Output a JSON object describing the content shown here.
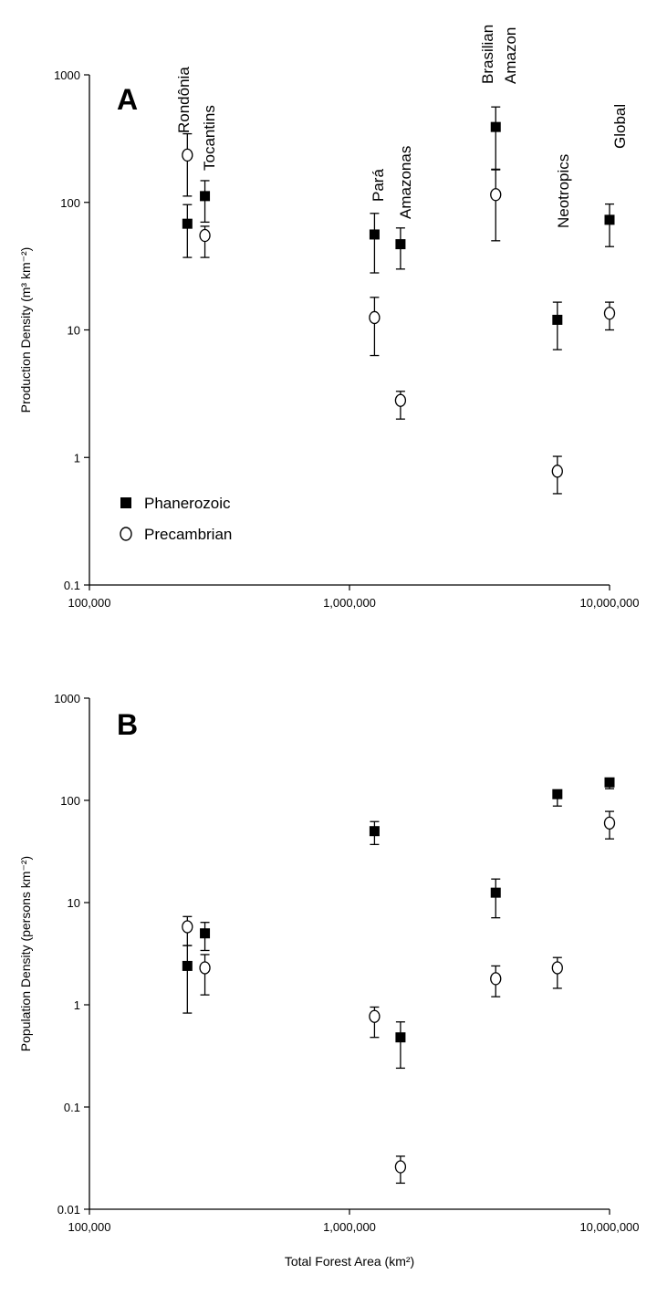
{
  "chart_data": [
    {
      "type": "scatter",
      "panel_label": "A",
      "ylabel": "Production Density (m³ km⁻²)",
      "xscale": "log",
      "yscale": "log",
      "xlim": [
        100000,
        10000000
      ],
      "ylim": [
        0.1,
        1000
      ],
      "xticks": [
        "100,000",
        "1,000,000",
        "10,000,000"
      ],
      "yticks": [
        "0.1",
        "1",
        "10",
        "100",
        "1000"
      ],
      "legend": {
        "placement": "lower-left",
        "items": [
          "Phanerozoic",
          "Precambrian"
        ]
      },
      "series": [
        {
          "name": "Phanerozoic",
          "marker": "filled-square",
          "points": [
            {
              "x": 238000,
              "y": 68,
              "lo": 37,
              "hi": 96
            },
            {
              "x": 278000,
              "y": 112,
              "lo": 70,
              "hi": 148
            },
            {
              "x": 1248000,
              "y": 56,
              "lo": 28,
              "hi": 82
            },
            {
              "x": 1571000,
              "y": 47,
              "lo": 30,
              "hi": 63
            },
            {
              "x": 3650000,
              "y": 390,
              "lo": 182,
              "hi": 560
            },
            {
              "x": 6300000,
              "y": 12,
              "lo": 7,
              "hi": 16.5
            },
            {
              "x": 10000000,
              "y": 73,
              "lo": 45,
              "hi": 97
            }
          ]
        },
        {
          "name": "Precambrian",
          "marker": "open-circle",
          "points": [
            {
              "x": 238000,
              "y": 235,
              "lo": 112,
              "hi": 345
            },
            {
              "x": 278000,
              "y": 55,
              "lo": 37,
              "hi": 65
            },
            {
              "x": 1248000,
              "y": 12.5,
              "lo": 6.3,
              "hi": 18
            },
            {
              "x": 1571000,
              "y": 2.8,
              "lo": 2,
              "hi": 3.3
            },
            {
              "x": 3650000,
              "y": 115,
              "lo": 50,
              "hi": 180
            },
            {
              "x": 6300000,
              "y": 0.78,
              "lo": 0.52,
              "hi": 1.02
            },
            {
              "x": 10000000,
              "y": 13.5,
              "lo": 10,
              "hi": 16.5
            }
          ]
        }
      ],
      "annotations": [
        {
          "text": "Rondônia",
          "x": 238000,
          "y": 420
        },
        {
          "text": "Tocantins",
          "x": 278000,
          "y": 150
        },
        {
          "text": "Pará",
          "x": 1248000,
          "y": 85
        },
        {
          "text": "Amazonas",
          "x": 1571000,
          "y": 72
        },
        {
          "text": "Brasilian",
          "x": 3650000,
          "y": 600
        },
        {
          "text": "Amazon",
          "x": 3650000,
          "y": 600
        },
        {
          "text": "Neotropics",
          "x": 6300000,
          "y": 20
        },
        {
          "text": "Global",
          "x": 10000000,
          "y": 110
        }
      ]
    },
    {
      "type": "scatter",
      "panel_label": "B",
      "ylabel": "Population Density (persons km⁻²)",
      "xlabel": "Total Forest Area (km²)",
      "xscale": "log",
      "yscale": "log",
      "xlim": [
        100000,
        10000000
      ],
      "ylim": [
        0.01,
        1000
      ],
      "xticks": [
        "100,000",
        "1,000,000",
        "10,000,000"
      ],
      "yticks": [
        "0.01",
        "0.1",
        "1",
        "10",
        "100",
        "1000"
      ],
      "series": [
        {
          "name": "Phanerozoic",
          "marker": "filled-square",
          "points": [
            {
              "x": 238000,
              "y": 2.4,
              "lo": 0.83,
              "hi": 3.8
            },
            {
              "x": 278000,
              "y": 5,
              "lo": 3.4,
              "hi": 6.4
            },
            {
              "x": 1248000,
              "y": 50,
              "lo": 37,
              "hi": 62
            },
            {
              "x": 1571000,
              "y": 0.48,
              "lo": 0.24,
              "hi": 0.68
            },
            {
              "x": 3650000,
              "y": 12.5,
              "lo": 7.1,
              "hi": 17
            },
            {
              "x": 6300000,
              "y": 115,
              "lo": 88,
              "hi": 125
            },
            {
              "x": 10000000,
              "y": 150,
              "lo": 130,
              "hi": 165
            }
          ]
        },
        {
          "name": "Precambrian",
          "marker": "open-circle",
          "points": [
            {
              "x": 238000,
              "y": 5.8,
              "lo": 3.8,
              "hi": 7.3
            },
            {
              "x": 278000,
              "y": 2.3,
              "lo": 1.25,
              "hi": 3.1
            },
            {
              "x": 1248000,
              "y": 0.77,
              "lo": 0.48,
              "hi": 0.95
            },
            {
              "x": 1571000,
              "y": 0.026,
              "lo": 0.018,
              "hi": 0.033
            },
            {
              "x": 3650000,
              "y": 1.8,
              "lo": 1.2,
              "hi": 2.4
            },
            {
              "x": 6300000,
              "y": 2.3,
              "lo": 1.45,
              "hi": 2.9
            },
            {
              "x": 10000000,
              "y": 60,
              "lo": 42,
              "hi": 78
            }
          ]
        }
      ]
    }
  ]
}
